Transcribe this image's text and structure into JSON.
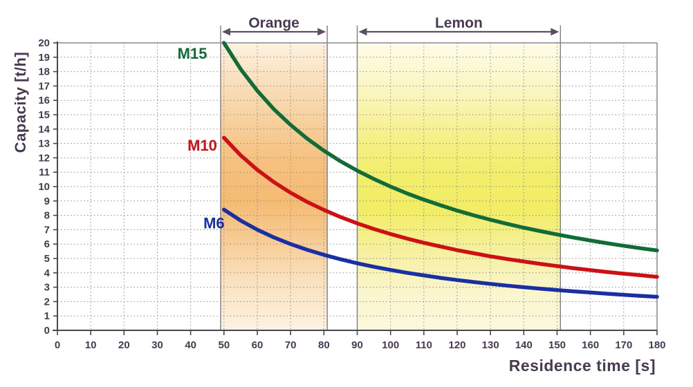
{
  "chart_data": {
    "type": "line",
    "title": "",
    "xlabel": "Residence time [s]",
    "ylabel": "Capacity [t/h]",
    "xlim": [
      0,
      180
    ],
    "ylim": [
      0,
      20
    ],
    "grid": true,
    "x_ticks": [
      0,
      10,
      20,
      30,
      40,
      50,
      60,
      70,
      80,
      90,
      100,
      110,
      120,
      130,
      140,
      150,
      160,
      170,
      180
    ],
    "y_ticks": [
      0,
      1,
      2,
      3,
      4,
      5,
      6,
      7,
      8,
      9,
      10,
      11,
      12,
      13,
      14,
      15,
      16,
      17,
      18,
      19,
      20
    ],
    "bands": [
      {
        "label": "Orange",
        "x_start": 49,
        "x_end": 81,
        "gradient": [
          {
            "offset": 0.0,
            "color": "#fdf2e1"
          },
          {
            "offset": 0.12,
            "color": "#fae1bf"
          },
          {
            "offset": 0.3,
            "color": "#f7cd97"
          },
          {
            "offset": 0.42,
            "color": "#f6c07c"
          },
          {
            "offset": 0.55,
            "color": "#f5bb72"
          },
          {
            "offset": 0.68,
            "color": "#f7ca92"
          },
          {
            "offset": 0.82,
            "color": "#fae0bc"
          },
          {
            "offset": 1.0,
            "color": "#fdf2e2"
          }
        ]
      },
      {
        "label": "Lemon",
        "x_start": 90,
        "x_end": 151,
        "gradient": [
          {
            "offset": 0.0,
            "color": "#fefce9"
          },
          {
            "offset": 0.15,
            "color": "#fbf6c4"
          },
          {
            "offset": 0.32,
            "color": "#f6f08c"
          },
          {
            "offset": 0.45,
            "color": "#f2ee6b"
          },
          {
            "offset": 0.58,
            "color": "#f2ed64"
          },
          {
            "offset": 0.72,
            "color": "#f6f09d"
          },
          {
            "offset": 0.86,
            "color": "#faf5cb"
          },
          {
            "offset": 1.0,
            "color": "#fcf8dd"
          }
        ]
      }
    ],
    "series": [
      {
        "name": "M15",
        "color": "#116c38",
        "label_x": 40.5,
        "label_y": 18.9,
        "points": [
          [
            50,
            20
          ],
          [
            55,
            18.18
          ],
          [
            60,
            16.67
          ],
          [
            65,
            15.38
          ],
          [
            70,
            14.29
          ],
          [
            75,
            13.33
          ],
          [
            80,
            12.5
          ],
          [
            85,
            11.76
          ],
          [
            90,
            11.11
          ],
          [
            95,
            10.53
          ],
          [
            100,
            10
          ],
          [
            105,
            9.52
          ],
          [
            110,
            9.09
          ],
          [
            115,
            8.7
          ],
          [
            120,
            8.33
          ],
          [
            125,
            8
          ],
          [
            130,
            7.69
          ],
          [
            135,
            7.41
          ],
          [
            140,
            7.14
          ],
          [
            145,
            6.9
          ],
          [
            150,
            6.67
          ],
          [
            155,
            6.45
          ],
          [
            160,
            6.25
          ],
          [
            165,
            6.06
          ],
          [
            170,
            5.88
          ],
          [
            175,
            5.71
          ],
          [
            180,
            5.56
          ]
        ]
      },
      {
        "name": "M10",
        "color": "#cc1015",
        "label_x": 43.5,
        "label_y": 12.5,
        "points": [
          [
            50,
            13.4
          ],
          [
            55,
            12.18
          ],
          [
            60,
            11.17
          ],
          [
            65,
            10.31
          ],
          [
            70,
            9.57
          ],
          [
            75,
            8.93
          ],
          [
            80,
            8.38
          ],
          [
            85,
            7.88
          ],
          [
            90,
            7.44
          ],
          [
            95,
            7.05
          ],
          [
            100,
            6.7
          ],
          [
            105,
            6.38
          ],
          [
            110,
            6.09
          ],
          [
            115,
            5.83
          ],
          [
            120,
            5.58
          ],
          [
            125,
            5.36
          ],
          [
            130,
            5.15
          ],
          [
            135,
            4.96
          ],
          [
            140,
            4.79
          ],
          [
            145,
            4.62
          ],
          [
            150,
            4.47
          ],
          [
            155,
            4.32
          ],
          [
            160,
            4.19
          ],
          [
            165,
            4.06
          ],
          [
            170,
            3.94
          ],
          [
            175,
            3.83
          ],
          [
            180,
            3.72
          ]
        ]
      },
      {
        "name": "M6",
        "color": "#1a2fa2",
        "label_x": 47.0,
        "label_y": 7.1,
        "points": [
          [
            50,
            8.4
          ],
          [
            55,
            7.64
          ],
          [
            60,
            7
          ],
          [
            65,
            6.46
          ],
          [
            70,
            6
          ],
          [
            75,
            5.6
          ],
          [
            80,
            5.25
          ],
          [
            85,
            4.94
          ],
          [
            90,
            4.67
          ],
          [
            95,
            4.42
          ],
          [
            100,
            4.2
          ],
          [
            105,
            4
          ],
          [
            110,
            3.82
          ],
          [
            115,
            3.65
          ],
          [
            120,
            3.5
          ],
          [
            125,
            3.36
          ],
          [
            130,
            3.23
          ],
          [
            135,
            3.11
          ],
          [
            140,
            3
          ],
          [
            145,
            2.9
          ],
          [
            150,
            2.8
          ],
          [
            155,
            2.71
          ],
          [
            160,
            2.63
          ],
          [
            165,
            2.55
          ],
          [
            170,
            2.47
          ],
          [
            175,
            2.4
          ],
          [
            180,
            2.33
          ]
        ]
      }
    ],
    "colors": {
      "text": "#473a52",
      "axis": "#4a454e",
      "grid": "#8f8f8f",
      "border": "#8a8a8a",
      "band_line": "#7d7d86",
      "arrow": "#5d4f63"
    }
  }
}
